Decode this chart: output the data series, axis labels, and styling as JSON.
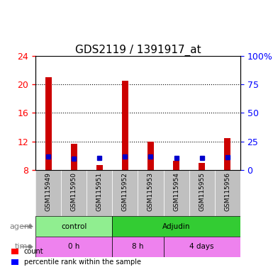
{
  "title": "GDS2119 / 1391917_at",
  "samples": [
    "GSM115949",
    "GSM115950",
    "GSM115951",
    "GSM115952",
    "GSM115953",
    "GSM115954",
    "GSM115955",
    "GSM115956"
  ],
  "count_values": [
    21.0,
    11.7,
    8.7,
    20.5,
    12.0,
    9.3,
    9.0,
    12.5
  ],
  "percentile_values": [
    11.7,
    10.2,
    10.3,
    11.7,
    11.5,
    10.3,
    10.3,
    11.3
  ],
  "left_yticks": [
    8,
    12,
    16,
    20,
    24
  ],
  "right_yticks": [
    0,
    25,
    50,
    75,
    100
  ],
  "ymin": 8,
  "ymax": 24,
  "percentile_min": 0,
  "percentile_max": 100,
  "dotted_lines": [
    12,
    16,
    20
  ],
  "agent_groups": [
    {
      "label": "control",
      "start": 0,
      "end": 3,
      "color": "#90EE90"
    },
    {
      "label": "Adjudin",
      "start": 3,
      "end": 8,
      "color": "#33CC33"
    }
  ],
  "time_groups": [
    {
      "label": "0 h",
      "start": 0,
      "end": 3,
      "color": "#EE82EE"
    },
    {
      "label": "8 h",
      "start": 3,
      "end": 5,
      "color": "#EE82EE"
    },
    {
      "label": "4 days",
      "start": 5,
      "end": 8,
      "color": "#EE82EE"
    }
  ],
  "count_color": "#CC0000",
  "percentile_color": "#0000CC",
  "bar_width": 0.25,
  "xlabel_bg_color": "#C0C0C0",
  "title_fontsize": 11,
  "left_label_color": "red",
  "right_label_color": "blue"
}
